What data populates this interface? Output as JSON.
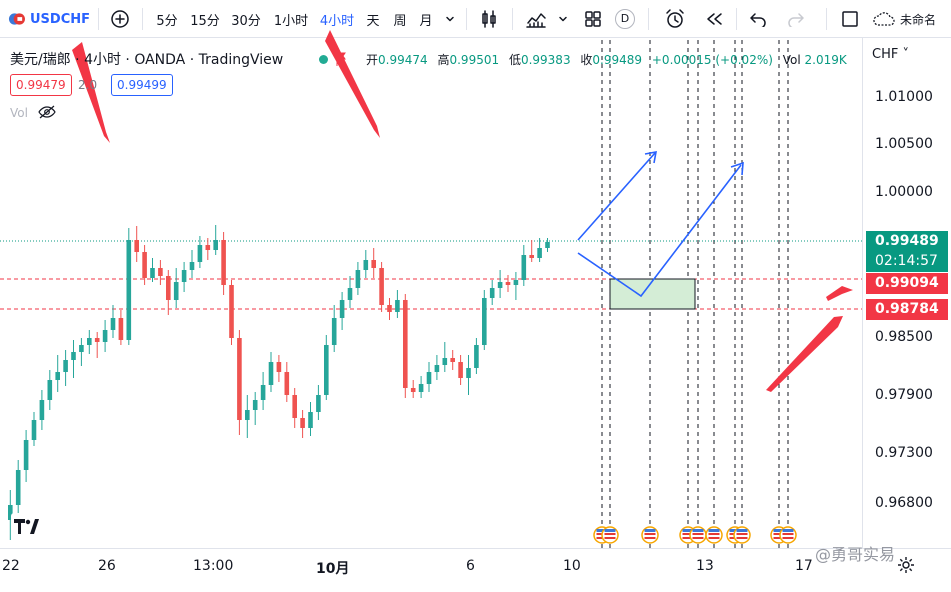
{
  "toolbar": {
    "symbol": "USDCHF",
    "intervals": [
      "5分",
      "15分",
      "30分",
      "1小时",
      "4小时",
      "天",
      "周",
      "月"
    ],
    "active_interval": "4小时",
    "indicator_letter": "D",
    "layout_name": "未命名"
  },
  "legend": {
    "title": "美元/瑞郎 · 4小时 · OANDA · TradingView",
    "open_label": "开",
    "open": "0.99474",
    "high_label": "高",
    "high": "0.99501",
    "low_label": "低",
    "low": "0.99383",
    "close_label": "收",
    "close": "0.99489",
    "change": "+0.00015 (+0.02%)",
    "vol_label": "Vol",
    "vol_value": "2.019K",
    "sell_price": "0.99479",
    "spread": "2.0",
    "buy_price": "0.99499",
    "volume_indicator": "Vol"
  },
  "axis": {
    "currency": "CHF",
    "y_ticks": [
      "1.01000",
      "1.00500",
      "1.00000",
      "0.98500",
      "0.97900",
      "0.97300",
      "0.96800"
    ],
    "x_ticks": [
      "22",
      "26",
      "13:00",
      "10月",
      "6",
      "10",
      "13",
      "17"
    ]
  },
  "price_labels": {
    "current": "0.99489",
    "countdown": "02:14:57",
    "level_1": "0.99094",
    "level_2": "0.98784"
  },
  "watermark": "@勇哥实易",
  "colors": {
    "up": "#26a69a",
    "down": "#ef5350",
    "accent": "#2962ff",
    "annotation_red": "#f23645",
    "zone_fill": "#d4edd6"
  },
  "icons": [
    "plus-circle-icon",
    "candles-icon",
    "indicators-icon",
    "layout-icon",
    "alarm-icon",
    "replay-icon",
    "undo-icon",
    "redo-icon",
    "fullscreen-icon",
    "cloud-icon",
    "eye-off-icon",
    "gear-icon"
  ]
}
